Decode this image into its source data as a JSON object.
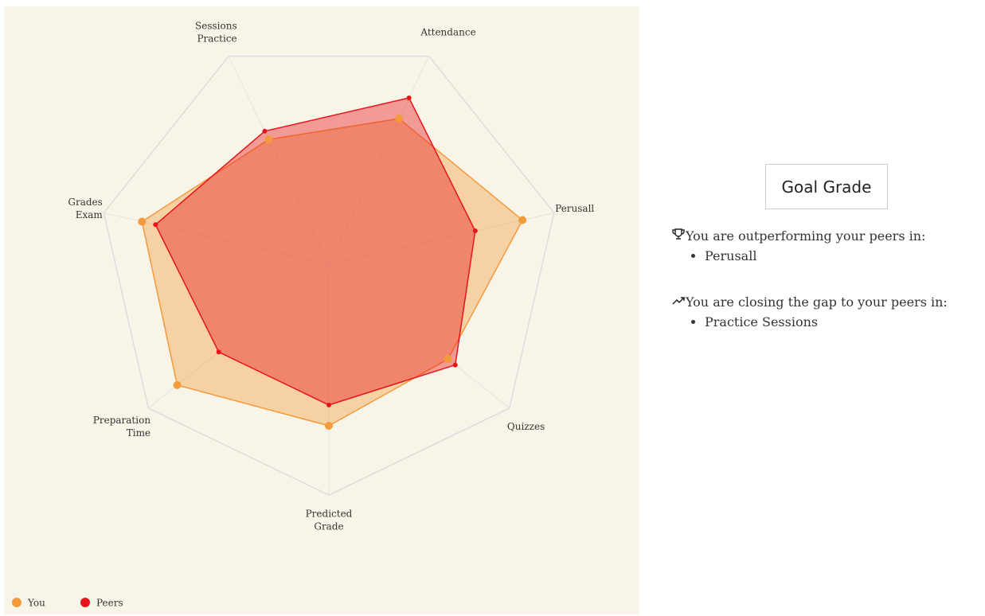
{
  "chart_data": {
    "type": "radar",
    "axes": [
      [
        "Attendance"
      ],
      [
        "Perusall"
      ],
      [
        "Quizzes"
      ],
      [
        "Predicted",
        "Grade"
      ],
      [
        "Preparation",
        "Time"
      ],
      [
        "Grades",
        "Exam"
      ],
      [
        "Sessions",
        "Practice"
      ]
    ],
    "rlim": [
      0,
      100
    ],
    "series": [
      {
        "name": "You",
        "color": "#f39a3c",
        "values": [
          70,
          86,
          66,
          70,
          84,
          83,
          60
        ]
      },
      {
        "name": "Peers",
        "color": "#e8141b",
        "values": [
          80,
          65,
          70,
          61,
          61,
          77,
          64
        ]
      }
    ]
  },
  "panel": {
    "button": "Goal Grade",
    "sections": [
      {
        "heading": "You are outperforming your peers in:",
        "items": [
          "Perusall"
        ]
      },
      {
        "heading": "You are closing the gap to your peers in:",
        "items": [
          "Practice Sessions"
        ]
      }
    ]
  }
}
